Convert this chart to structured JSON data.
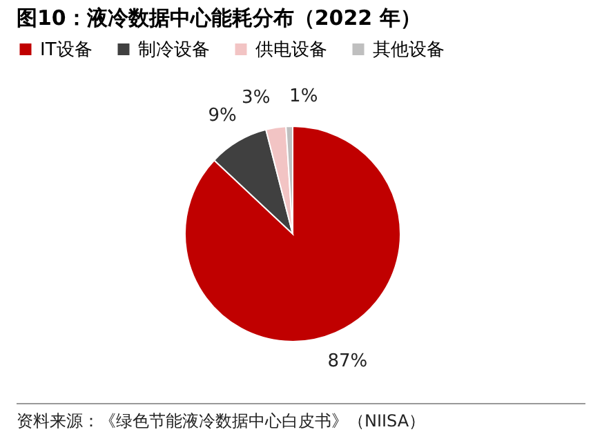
{
  "chart_data": {
    "type": "pie",
    "title": "图10：液冷数据中心能耗分布（2022 年）",
    "categories": [
      "IT设备",
      "制冷设备",
      "供电设备",
      "其他设备"
    ],
    "values": [
      87,
      9,
      3,
      1
    ],
    "colors": [
      "#c00000",
      "#404040",
      "#f2c4c4",
      "#bfbfbf"
    ],
    "value_labels": [
      "87%",
      "9%",
      "3%",
      "1%"
    ],
    "legend": "top",
    "annotations": [
      "资料来源：《绿色节能液冷数据中心白皮书》（NIISA）"
    ]
  }
}
